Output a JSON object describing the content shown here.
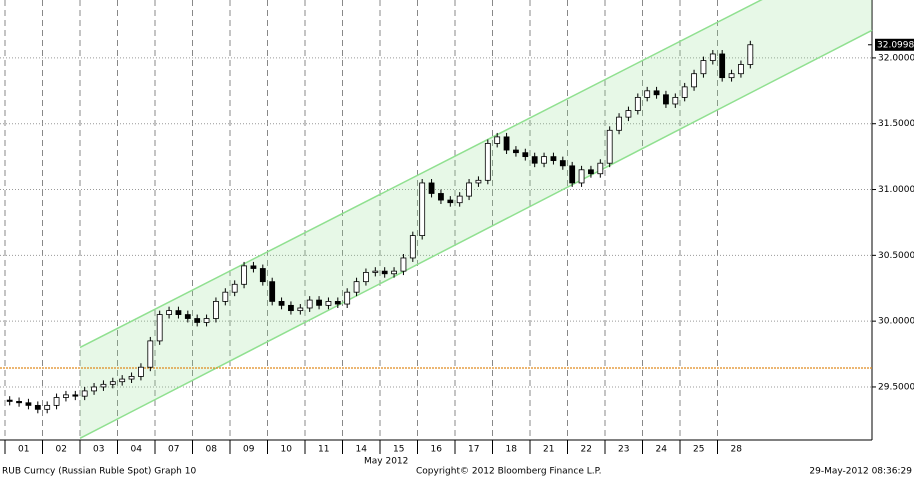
{
  "chart_data": {
    "type": "candlestick",
    "categories": [
      "01",
      "02",
      "03",
      "04",
      "07",
      "08",
      "09",
      "10",
      "11",
      "14",
      "15",
      "16",
      "17",
      "18",
      "21",
      "22",
      "23",
      "24",
      "25",
      "28"
    ],
    "x_label": "May 2012",
    "candles_per_category": 4,
    "open": [
      29.4,
      29.39,
      29.38,
      29.36,
      29.33,
      29.36,
      29.42,
      29.44,
      29.43,
      29.47,
      29.5,
      29.52,
      29.54,
      29.56,
      29.58,
      29.65,
      29.85,
      30.05,
      30.08,
      30.05,
      30.02,
      29.99,
      30.02,
      30.15,
      30.22,
      30.28,
      30.42,
      30.4,
      30.3,
      30.15,
      30.12,
      30.08,
      30.1,
      30.16,
      30.12,
      30.15,
      30.13,
      30.22,
      30.3,
      30.37,
      30.38,
      30.36,
      30.38,
      30.48,
      30.65,
      31.05,
      30.97,
      30.92,
      30.9,
      30.95,
      31.05,
      31.07,
      31.35,
      31.4,
      31.3,
      31.28,
      31.25,
      31.2,
      31.25,
      31.22,
      31.18,
      31.05,
      31.15,
      31.12,
      31.2,
      31.45,
      31.55,
      31.6,
      31.7,
      31.75,
      31.72,
      31.65,
      31.7,
      31.78,
      31.88,
      31.98,
      32.03,
      31.85,
      31.88,
      31.95
    ],
    "high": [
      29.43,
      29.42,
      29.41,
      29.39,
      29.39,
      29.45,
      29.47,
      29.47,
      29.5,
      29.53,
      29.55,
      29.57,
      29.59,
      29.61,
      29.68,
      29.88,
      30.08,
      30.11,
      30.11,
      30.08,
      30.05,
      30.05,
      30.18,
      30.25,
      30.31,
      30.45,
      30.45,
      30.43,
      30.33,
      30.18,
      30.15,
      30.13,
      30.19,
      30.19,
      30.18,
      30.18,
      30.25,
      30.33,
      30.4,
      30.41,
      30.41,
      30.41,
      30.51,
      30.68,
      31.08,
      31.08,
      31.0,
      30.95,
      30.98,
      31.08,
      31.1,
      31.38,
      31.43,
      31.43,
      31.33,
      31.31,
      31.28,
      31.28,
      31.28,
      31.25,
      31.21,
      31.18,
      31.18,
      31.23,
      31.48,
      31.58,
      31.63,
      31.73,
      31.78,
      31.78,
      31.75,
      31.73,
      31.81,
      31.91,
      32.01,
      32.06,
      32.06,
      31.91,
      31.98,
      32.13
    ],
    "low": [
      29.36,
      29.35,
      29.33,
      29.3,
      29.3,
      29.33,
      29.39,
      29.4,
      29.4,
      29.44,
      29.47,
      29.49,
      29.51,
      29.53,
      29.55,
      29.62,
      29.82,
      30.02,
      30.02,
      29.99,
      29.96,
      29.96,
      29.99,
      30.12,
      30.19,
      30.25,
      30.37,
      30.27,
      30.12,
      30.09,
      30.05,
      30.05,
      30.07,
      30.09,
      30.09,
      30.1,
      30.1,
      30.19,
      30.27,
      30.34,
      30.33,
      30.33,
      30.35,
      30.45,
      30.62,
      30.94,
      30.89,
      30.87,
      30.87,
      30.92,
      31.02,
      31.04,
      31.32,
      31.27,
      31.25,
      31.22,
      31.17,
      31.17,
      31.19,
      31.15,
      31.02,
      31.02,
      31.09,
      31.09,
      31.17,
      31.42,
      31.52,
      31.57,
      31.67,
      31.69,
      31.62,
      31.62,
      31.67,
      31.75,
      31.85,
      31.95,
      31.82,
      31.82,
      31.85,
      31.92
    ],
    "close": [
      29.39,
      29.38,
      29.36,
      29.33,
      29.36,
      29.42,
      29.44,
      29.43,
      29.47,
      29.5,
      29.52,
      29.54,
      29.56,
      29.58,
      29.65,
      29.85,
      30.05,
      30.08,
      30.05,
      30.02,
      29.99,
      30.02,
      30.15,
      30.22,
      30.28,
      30.42,
      30.4,
      30.3,
      30.15,
      30.12,
      30.08,
      30.1,
      30.16,
      30.12,
      30.15,
      30.13,
      30.22,
      30.3,
      30.37,
      30.38,
      30.36,
      30.38,
      30.48,
      30.65,
      31.05,
      30.97,
      30.92,
      30.9,
      30.95,
      31.05,
      31.07,
      31.35,
      31.4,
      31.3,
      31.28,
      31.25,
      31.2,
      31.25,
      31.22,
      31.18,
      31.05,
      31.15,
      31.12,
      31.2,
      31.45,
      31.55,
      31.6,
      31.7,
      31.75,
      31.72,
      31.65,
      31.7,
      31.78,
      31.88,
      31.98,
      32.03,
      31.85,
      31.88,
      31.95,
      32.1
    ],
    "ylim": [
      29.097,
      32.44
    ],
    "yticks": [
      {
        "value": 29.5,
        "label": "29.5000"
      },
      {
        "value": 30.0,
        "label": "30.0000"
      },
      {
        "value": 30.5,
        "label": "30.5000"
      },
      {
        "value": 31.0,
        "label": "31.0000"
      },
      {
        "value": 31.5,
        "label": "31.5000"
      },
      {
        "value": 32.0,
        "label": "32.0000"
      }
    ],
    "last_price": {
      "value": 32.0998,
      "label": "32.0998"
    },
    "reference_line": {
      "value": 29.644,
      "color": "#e08a1e"
    },
    "channel": {
      "upper": [
        29.8,
        32.87
      ],
      "lower": [
        29.11,
        32.21
      ],
      "color": "#90e090"
    },
    "grid": true,
    "footer": {
      "left": "RUB Curncy (Russian Ruble Spot) Graph 10",
      "center": "Copyright© 2012 Bloomberg Finance L.P.",
      "right": "29-May-2012 08:36:29"
    }
  }
}
